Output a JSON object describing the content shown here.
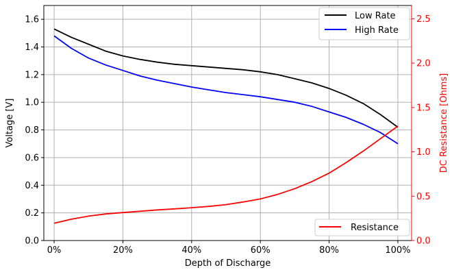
{
  "chart_data": {
    "type": "line",
    "xlabel": "Depth of Discharge",
    "ylabel": "Voltage [V]",
    "y2label": "DC Resistance [Ohms]",
    "xlim": [
      -0.03,
      1.04
    ],
    "ylim": [
      0.0,
      1.7
    ],
    "y2lim": [
      0.0,
      2.65
    ],
    "x_ticks": [
      0,
      0.2,
      0.4,
      0.6,
      0.8,
      1.0
    ],
    "x_tick_labels": [
      "0%",
      "20%",
      "40%",
      "60%",
      "80%",
      "100%"
    ],
    "y_ticks": [
      0.0,
      0.2,
      0.4,
      0.6,
      0.8,
      1.0,
      1.2,
      1.4,
      1.6
    ],
    "y_tick_labels": [
      "0.0",
      "0.2",
      "0.4",
      "0.6",
      "0.8",
      "1.0",
      "1.2",
      "1.4",
      "1.6"
    ],
    "y2_ticks": [
      0.0,
      0.5,
      1.0,
      1.5,
      2.0,
      2.5
    ],
    "y2_tick_labels": [
      "0.0",
      "0.5",
      "1.0",
      "1.5",
      "2.0",
      "2.5"
    ],
    "grid": true,
    "axis_color_right": "#ff0000",
    "legend_top": {
      "placement": "top-right",
      "entries": [
        "Low Rate",
        "High Rate"
      ]
    },
    "legend_bottom": {
      "placement": "bottom-right",
      "entries": [
        "Resistance"
      ]
    },
    "series": [
      {
        "name": "Low Rate",
        "axis": "left",
        "color": "#000000",
        "x": [
          0,
          0.05,
          0.1,
          0.15,
          0.2,
          0.25,
          0.3,
          0.35,
          0.4,
          0.45,
          0.5,
          0.55,
          0.6,
          0.65,
          0.7,
          0.75,
          0.8,
          0.85,
          0.9,
          0.95,
          1.0
        ],
        "y": [
          1.53,
          1.47,
          1.42,
          1.37,
          1.335,
          1.31,
          1.29,
          1.275,
          1.265,
          1.255,
          1.245,
          1.235,
          1.22,
          1.2,
          1.17,
          1.14,
          1.1,
          1.05,
          0.99,
          0.91,
          0.82
        ]
      },
      {
        "name": "High Rate",
        "axis": "left",
        "color": "#0000ff",
        "x": [
          0,
          0.05,
          0.1,
          0.15,
          0.2,
          0.25,
          0.3,
          0.35,
          0.4,
          0.45,
          0.5,
          0.55,
          0.6,
          0.65,
          0.7,
          0.75,
          0.8,
          0.85,
          0.9,
          0.95,
          1.0
        ],
        "y": [
          1.48,
          1.39,
          1.32,
          1.27,
          1.23,
          1.19,
          1.16,
          1.135,
          1.11,
          1.09,
          1.07,
          1.055,
          1.04,
          1.02,
          1.0,
          0.97,
          0.93,
          0.89,
          0.84,
          0.78,
          0.7
        ]
      },
      {
        "name": "Resistance",
        "axis": "right",
        "color": "#ff0000",
        "x": [
          0,
          0.05,
          0.1,
          0.15,
          0.2,
          0.25,
          0.3,
          0.35,
          0.4,
          0.45,
          0.5,
          0.55,
          0.6,
          0.65,
          0.7,
          0.75,
          0.8,
          0.85,
          0.9,
          0.95,
          1.0
        ],
        "y": [
          0.195,
          0.24,
          0.275,
          0.3,
          0.315,
          0.33,
          0.345,
          0.357,
          0.37,
          0.385,
          0.405,
          0.435,
          0.47,
          0.52,
          0.585,
          0.665,
          0.76,
          0.88,
          1.01,
          1.15,
          1.29
        ]
      }
    ]
  }
}
